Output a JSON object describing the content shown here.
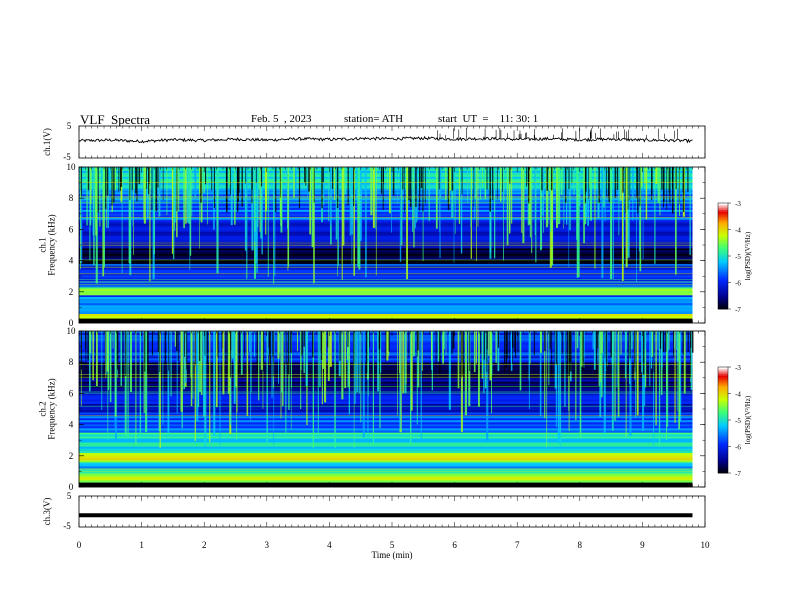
{
  "header": {
    "title": "VLF  Spectra",
    "date": "Feb. 5  , 2023",
    "station": "station= ATH",
    "start_ut": "start  UT  =    11: 30: 1"
  },
  "chart_data": [
    {
      "type": "line",
      "panel": "ch1-waveform",
      "ylabel": "ch.1(V)",
      "yticks": [
        "5",
        "-5"
      ],
      "ylim": [
        -5,
        5
      ],
      "xlim": [
        0,
        10
      ],
      "note_values": "approximate noisy waveform centered near 0.8 V",
      "x": [
        0,
        0.5,
        1,
        1.5,
        2,
        2.5,
        3,
        3.5,
        4,
        4.5,
        5,
        5.5,
        6,
        6.5,
        7,
        7.5,
        8,
        8.5,
        9,
        9.5,
        9.8
      ],
      "values": [
        0.4,
        0.6,
        0.2,
        0.7,
        0.5,
        0.9,
        0.6,
        1.0,
        0.8,
        1.1,
        1.0,
        1.2,
        0.9,
        1.1,
        0.8,
        1.0,
        0.7,
        0.9,
        0.6,
        0.5,
        0.3
      ]
    },
    {
      "type": "heatmap",
      "panel": "ch1-spectrogram",
      "ylabel": "ch.1\nFrequency  (kHz)",
      "yticks": [
        "0",
        "2",
        "4",
        "6",
        "8",
        "10"
      ],
      "ylim": [
        0,
        10
      ],
      "xlim": [
        0,
        10
      ],
      "colorbar": {
        "label": "log(PSD)(V²/Hz)",
        "ticks": [
          "-3",
          "-4",
          "-5",
          "-6",
          "-7"
        ],
        "range": [
          -7,
          -3
        ]
      },
      "bands_khz": [
        {
          "range": [
            0,
            0.3
          ],
          "level": -7
        },
        {
          "range": [
            0.3,
            0.6
          ],
          "level": -4
        },
        {
          "range": [
            0.6,
            1.8
          ],
          "level": -5.6
        },
        {
          "range": [
            1.8,
            2.3
          ],
          "level": -4.6
        },
        {
          "range": [
            2.3,
            3.8
          ],
          "level": -5.8
        },
        {
          "range": [
            3.8,
            4.8
          ],
          "level": -6.7
        },
        {
          "range": [
            4.8,
            6.5
          ],
          "level": -6.1
        },
        {
          "range": [
            6.5,
            8.5
          ],
          "level": -5.6
        },
        {
          "range": [
            8.5,
            10
          ],
          "level": -5.0
        }
      ]
    },
    {
      "type": "heatmap",
      "panel": "ch2-spectrogram",
      "ylabel": "ch.2\nFrequency  (kHz)",
      "yticks": [
        "0",
        "2",
        "4",
        "6",
        "8",
        "10"
      ],
      "ylim": [
        0,
        10
      ],
      "xlim": [
        0,
        10
      ],
      "colorbar": {
        "label": "log(PSD)(V²/Hz)",
        "ticks": [
          "-3",
          "-4",
          "-5",
          "-6",
          "-7"
        ],
        "range": [
          -7,
          -3
        ]
      },
      "bands_khz": [
        {
          "range": [
            0,
            0.3
          ],
          "level": -7
        },
        {
          "range": [
            0.3,
            0.9
          ],
          "level": -4.4
        },
        {
          "range": [
            0.9,
            1.6
          ],
          "level": -5.2
        },
        {
          "range": [
            1.6,
            2.2
          ],
          "level": -4.2
        },
        {
          "range": [
            2.2,
            3.5
          ],
          "level": -5.0
        },
        {
          "range": [
            3.5,
            4.8
          ],
          "level": -5.7
        },
        {
          "range": [
            4.8,
            6.0
          ],
          "level": -6.1
        },
        {
          "range": [
            6.0,
            8.0
          ],
          "level": -6.6
        },
        {
          "range": [
            8.0,
            10
          ],
          "level": -5.9
        }
      ]
    },
    {
      "type": "line",
      "panel": "ch3-waveform",
      "ylabel": "ch.3(V)",
      "yticks": [
        "5",
        "-5"
      ],
      "ylim": [
        -5,
        5
      ],
      "xlim": [
        0,
        10
      ],
      "x": [
        0,
        9.8
      ],
      "values": [
        -1.2,
        -1.2
      ],
      "xlabel": "Time  (min)",
      "xticks": [
        "0",
        "1",
        "2",
        "3",
        "4",
        "5",
        "6",
        "7",
        "8",
        "9",
        "10"
      ]
    }
  ]
}
